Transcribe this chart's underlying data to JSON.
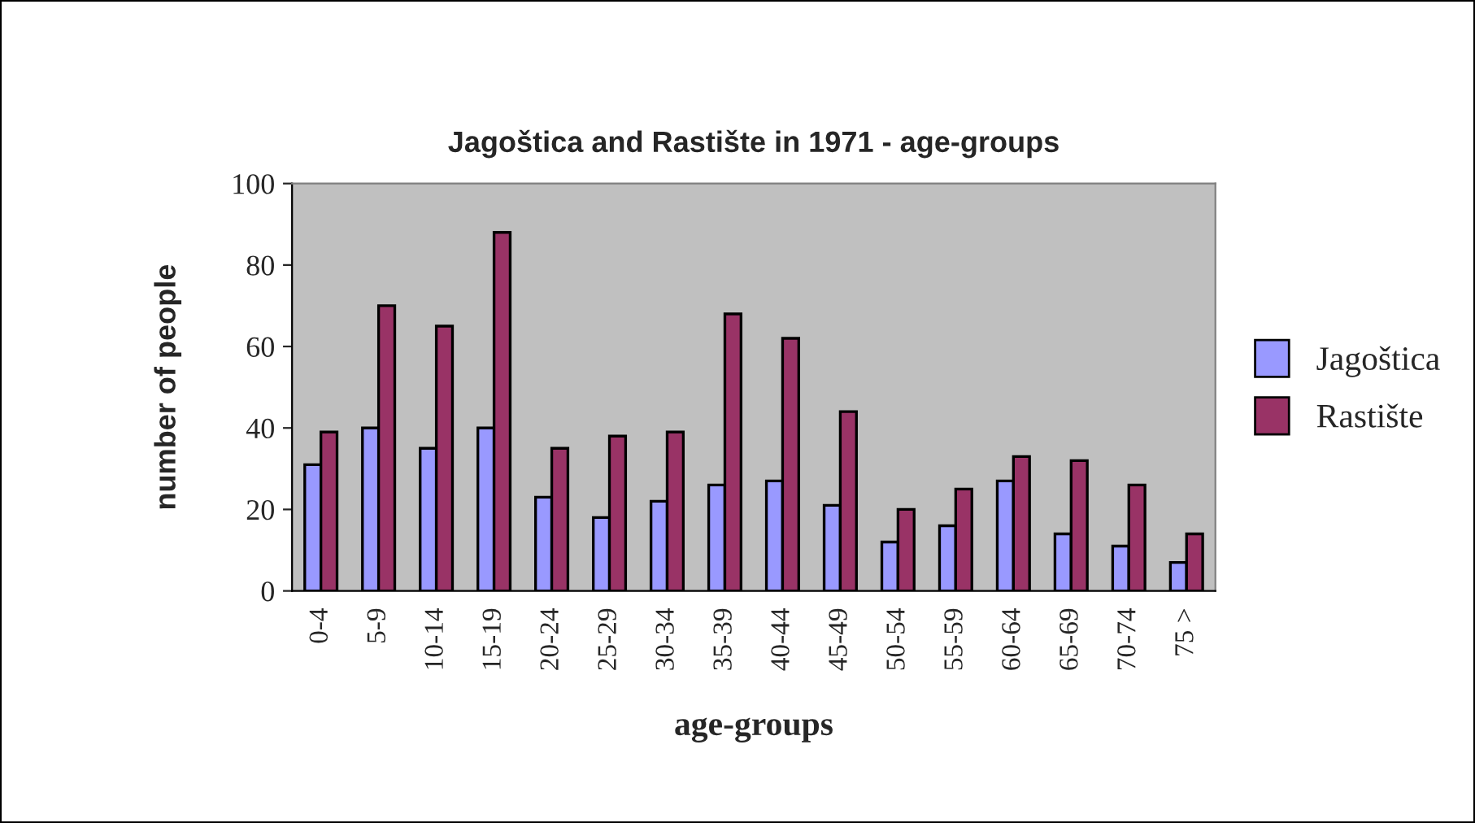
{
  "chart_data": {
    "type": "bar",
    "title": "Jagoštica and Rastište in 1971 - age-groups",
    "xlabel": "age-groups",
    "ylabel": "number of people",
    "categories": [
      "0-4",
      "5-9",
      "10-14",
      "15-19",
      "20-24",
      "25-29",
      "30-34",
      "35-39",
      "40-44",
      "45-49",
      "50-54",
      "55-59",
      "60-64",
      "65-69",
      "70-74",
      "75 >"
    ],
    "series": [
      {
        "name": "Jagoštica",
        "color": "#9999ff",
        "values": [
          31,
          40,
          35,
          40,
          23,
          18,
          22,
          26,
          27,
          21,
          12,
          16,
          27,
          14,
          11,
          7
        ]
      },
      {
        "name": "Rastište",
        "color": "#993366",
        "values": [
          39,
          70,
          65,
          88,
          35,
          38,
          39,
          68,
          62,
          44,
          20,
          25,
          33,
          32,
          26,
          14
        ]
      }
    ],
    "ylim": [
      0,
      100
    ],
    "yticks": [
      0,
      20,
      40,
      60,
      80,
      100
    ],
    "grid": false,
    "legend": "right"
  }
}
